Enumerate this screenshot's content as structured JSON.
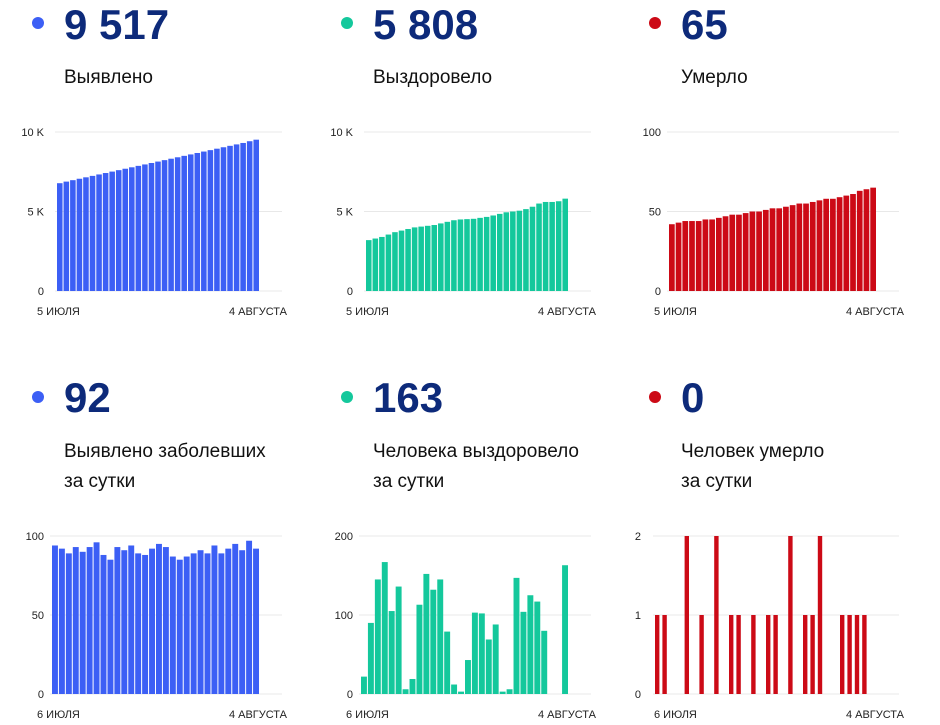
{
  "panels": [
    {
      "stat": "9 517",
      "label_lines": [
        "Выявлено"
      ],
      "color": "#3c5ff5"
    },
    {
      "stat": "5 808",
      "label_lines": [
        "Выздоровело"
      ],
      "color": "#14c89c"
    },
    {
      "stat": "65",
      "label_lines": [
        "Умерло"
      ],
      "color": "#cc0a16"
    },
    {
      "stat": "92",
      "label_lines": [
        "Выявлено заболевших",
        "за сутки"
      ],
      "color": "#3c5ff5"
    },
    {
      "stat": "163",
      "label_lines": [
        "Человека выздоровело",
        "за сутки"
      ],
      "color": "#14c89c"
    },
    {
      "stat": "0",
      "label_lines": [
        "Человек умерло",
        "за сутки"
      ],
      "color": "#cc0a16"
    }
  ],
  "chart_data": [
    {
      "type": "bar",
      "color": "#3c5ff5",
      "ylim": [
        0,
        10000
      ],
      "yticks": [
        {
          "value": 0,
          "label": "0"
        },
        {
          "value": 5000,
          "label": "5 K"
        },
        {
          "value": 10000,
          "label": "10 K"
        }
      ],
      "x_start_label": "5 ИЮЛЯ",
      "x_end_label": "4 АВГУСТА",
      "values": [
        6780,
        6880,
        6970,
        7060,
        7150,
        7240,
        7330,
        7420,
        7510,
        7600,
        7690,
        7780,
        7870,
        7960,
        8050,
        8140,
        8230,
        8320,
        8410,
        8500,
        8590,
        8680,
        8770,
        8860,
        8950,
        9040,
        9130,
        9220,
        9310,
        9420,
        9517
      ]
    },
    {
      "type": "bar",
      "color": "#14c89c",
      "ylim": [
        0,
        10000
      ],
      "yticks": [
        {
          "value": 0,
          "label": "0"
        },
        {
          "value": 5000,
          "label": "5 K"
        },
        {
          "value": 10000,
          "label": "10 K"
        }
      ],
      "x_start_label": "5 ИЮЛЯ",
      "x_end_label": "4 АВГУСТА",
      "values": [
        3200,
        3300,
        3400,
        3550,
        3700,
        3800,
        3900,
        4000,
        4050,
        4100,
        4150,
        4250,
        4350,
        4450,
        4500,
        4520,
        4540,
        4600,
        4660,
        4750,
        4850,
        4950,
        5000,
        5050,
        5150,
        5300,
        5500,
        5600,
        5600,
        5645,
        5808
      ]
    },
    {
      "type": "bar",
      "color": "#cc0a16",
      "ylim": [
        0,
        100
      ],
      "yticks": [
        {
          "value": 0,
          "label": "0"
        },
        {
          "value": 50,
          "label": "50"
        },
        {
          "value": 100,
          "label": "100"
        }
      ],
      "x_start_label": "5 ИЮЛЯ",
      "x_end_label": "4 АВГУСТА",
      "values": [
        42,
        43,
        44,
        44,
        44,
        45,
        45,
        46,
        47,
        48,
        48,
        49,
        50,
        50,
        51,
        52,
        52,
        53,
        54,
        55,
        55,
        56,
        57,
        58,
        58,
        59,
        60,
        61,
        63,
        64,
        65
      ]
    },
    {
      "type": "bar",
      "color": "#3c5ff5",
      "ylim": [
        0,
        100
      ],
      "yticks": [
        {
          "value": 0,
          "label": "0"
        },
        {
          "value": 50,
          "label": "50"
        },
        {
          "value": 100,
          "label": "100"
        }
      ],
      "x_start_label": "6 ИЮЛЯ",
      "x_end_label": "4 АВГУСТА",
      "values": [
        94,
        92,
        89,
        93,
        90,
        93,
        96,
        88,
        85,
        93,
        91,
        94,
        89,
        88,
        92,
        95,
        93,
        87,
        85,
        87,
        89,
        91,
        89,
        94,
        89,
        92,
        95,
        91,
        97,
        92
      ]
    },
    {
      "type": "bar",
      "color": "#14c89c",
      "ylim": [
        0,
        200
      ],
      "yticks": [
        {
          "value": 0,
          "label": "0"
        },
        {
          "value": 100,
          "label": "100"
        },
        {
          "value": 200,
          "label": "200"
        }
      ],
      "x_start_label": "6 ИЮЛЯ",
      "x_end_label": "4 АВГУСТА",
      "values": [
        22,
        90,
        145,
        167,
        105,
        136,
        6,
        19,
        113,
        152,
        132,
        145,
        79,
        12,
        3,
        43,
        103,
        102,
        69,
        88,
        3,
        6,
        147,
        104,
        125,
        117,
        80,
        0,
        0,
        163
      ]
    },
    {
      "type": "bar",
      "color": "#cc0a16",
      "ylim": [
        0,
        2
      ],
      "yticks": [
        {
          "value": 0,
          "label": "0"
        },
        {
          "value": 1,
          "label": "1"
        },
        {
          "value": 2,
          "label": "2"
        }
      ],
      "x_start_label": "6 ИЮЛЯ",
      "x_end_label": "4 АВГУСТА",
      "values": [
        1,
        1,
        0,
        0,
        2,
        0,
        1,
        0,
        2,
        0,
        1,
        1,
        0,
        1,
        0,
        1,
        1,
        0,
        2,
        0,
        1,
        1,
        2,
        0,
        0,
        1,
        1,
        1,
        1,
        0
      ]
    }
  ]
}
